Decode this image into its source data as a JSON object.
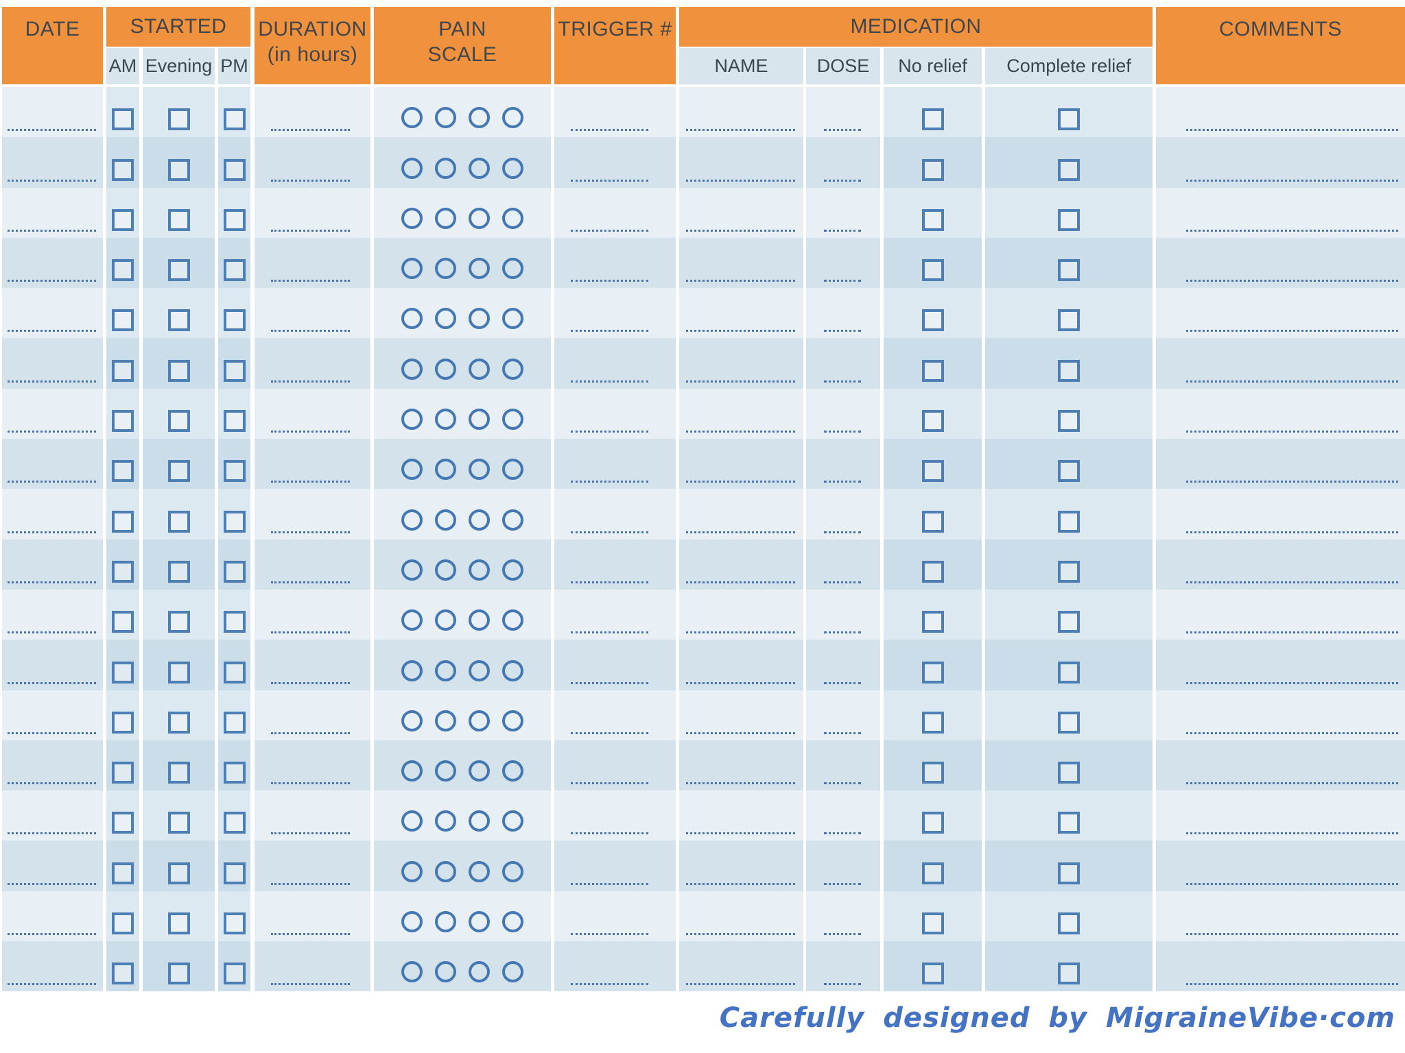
{
  "header": {
    "date": "DATE",
    "started": "STARTED",
    "started_sub": {
      "am": "AM",
      "evening": "Evening",
      "pm": "PM"
    },
    "duration_title": "DURATION",
    "duration_subtitle": "(in hours)",
    "pain_title": "PAIN",
    "pain_subtitle": "SCALE",
    "trigger": "TRIGGER #",
    "medication": "MEDICATION",
    "medication_sub": {
      "name": "NAME",
      "dose": "DOSE",
      "no_relief": "No relief",
      "complete_relief": "Complete relief"
    },
    "comments": "COMMENTS"
  },
  "rows": {
    "count": 18,
    "pain_circles_per_row": 4
  },
  "footer": {
    "credit": "Carefully designed by MigraineVibe·com"
  },
  "colors": {
    "header_orange": "#f0913d",
    "subheader_blue": "#d8e5ec",
    "row_light": "#e8eff5",
    "row_light_alt": "#dde9f0",
    "row_dark": "#d3e2eb",
    "row_dark_alt": "#cbdde8",
    "checkbox_blue": "#4d7fb5",
    "circle_blue": "#4478b3",
    "dotted_line_blue": "#4b74ad",
    "footer_blue": "#4573c4"
  }
}
